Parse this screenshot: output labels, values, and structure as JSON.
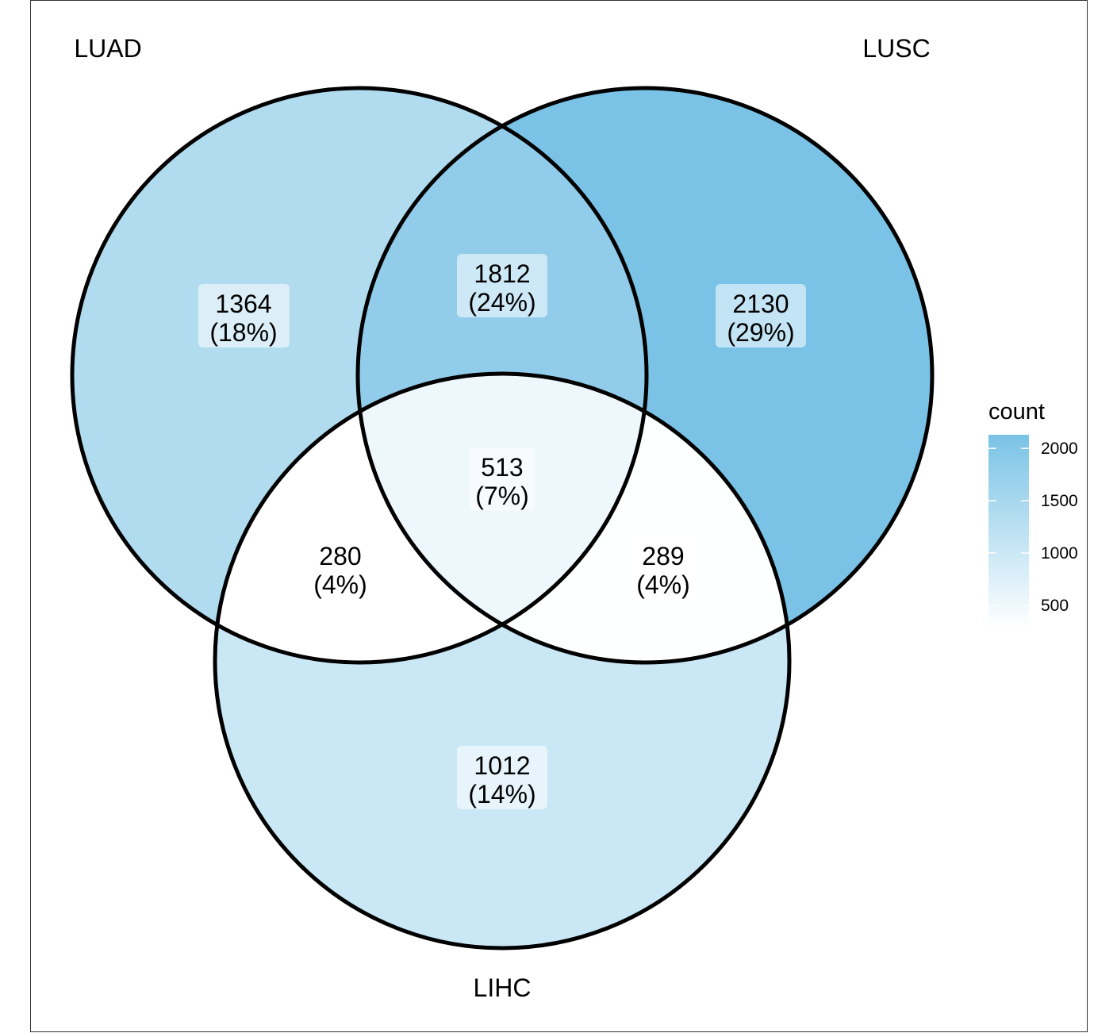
{
  "chart_data": {
    "type": "venn",
    "sets": [
      {
        "name": "LUAD"
      },
      {
        "name": "LUSC"
      },
      {
        "name": "LIHC"
      }
    ],
    "regions": [
      {
        "id": "luad-only",
        "sets": [
          "LUAD"
        ],
        "count": 1364,
        "percent_label": "(18%)",
        "count_label": "1364"
      },
      {
        "id": "lusc-only",
        "sets": [
          "LUSC"
        ],
        "count": 2130,
        "percent_label": "(29%)",
        "count_label": "2130"
      },
      {
        "id": "lihc-only",
        "sets": [
          "LIHC"
        ],
        "count": 1012,
        "percent_label": "(14%)",
        "count_label": "1012"
      },
      {
        "id": "luad-lusc",
        "sets": [
          "LUAD",
          "LUSC"
        ],
        "count": 1812,
        "percent_label": "(24%)",
        "count_label": "1812"
      },
      {
        "id": "luad-lihc",
        "sets": [
          "LUAD",
          "LIHC"
        ],
        "count": 280,
        "percent_label": "(4%)",
        "count_label": "280"
      },
      {
        "id": "lusc-lihc",
        "sets": [
          "LUSC",
          "LIHC"
        ],
        "count": 289,
        "percent_label": "(4%)",
        "count_label": "289"
      },
      {
        "id": "all-three",
        "sets": [
          "LUAD",
          "LUSC",
          "LIHC"
        ],
        "count": 513,
        "percent_label": "(7%)",
        "count_label": "513"
      }
    ],
    "legend": {
      "title": "count",
      "placement": "right",
      "min": 280,
      "max": 2130,
      "low_color": "#ffffff",
      "high_color": "#7ac3e6",
      "ticks": [
        2000,
        1500,
        1000,
        500
      ],
      "tick_labels": [
        "2000",
        "1500",
        "1000",
        "500"
      ]
    },
    "colors": {
      "outline": "#000000",
      "label_box": "#ffffff"
    }
  }
}
